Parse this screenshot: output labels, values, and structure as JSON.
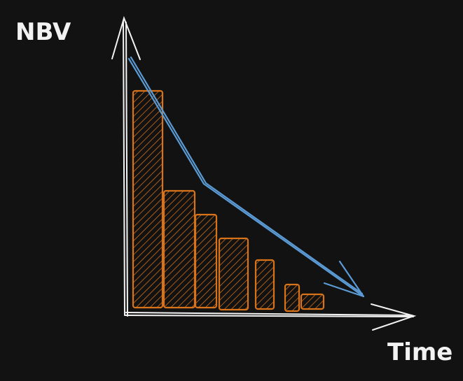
{
  "labels": {
    "y_axis": "NBV",
    "x_axis": "Time"
  },
  "colors": {
    "background": "#121212",
    "axis": "#f2f2f2",
    "bars": "#d9731a",
    "trend": "#5b9bd5"
  }
}
